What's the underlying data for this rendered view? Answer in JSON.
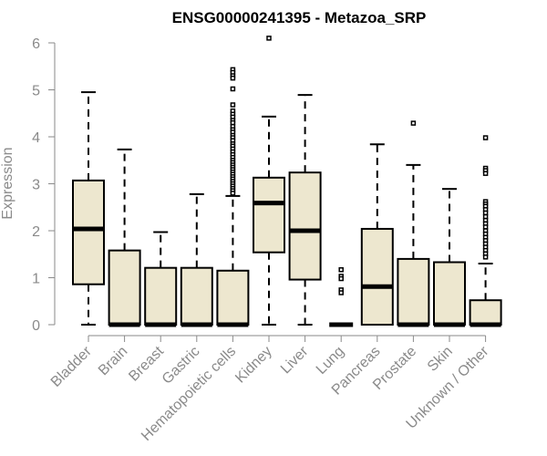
{
  "chart_data": {
    "type": "boxplot",
    "title": "ENSG00000241395 - Metazoa_SRP",
    "xlabel": "",
    "ylabel": "Expression",
    "ylim": [
      0,
      6
    ],
    "yticks": [
      "0",
      "1",
      "2",
      "3",
      "4",
      "5",
      "6"
    ],
    "grid": false,
    "colors": {
      "box_fill": "#EDE7CF",
      "stroke": "#000000",
      "axis": "#8A8A8A"
    },
    "categories": [
      "Bladder",
      "Brain",
      "Breast",
      "Gastric",
      "Hematopoietic cells",
      "Kidney",
      "Liver",
      "Lung",
      "Pancreas",
      "Prostate",
      "Skin",
      "Unknown / Other"
    ],
    "boxes": [
      {
        "name": "Bladder",
        "whisker_low": 0,
        "q1": 0.86,
        "median": 2.04,
        "q3": 3.07,
        "whisker_high": 4.95,
        "outliers": []
      },
      {
        "name": "Brain",
        "whisker_low": 0,
        "q1": 0,
        "median": 0,
        "q3": 1.58,
        "whisker_high": 3.73,
        "outliers": []
      },
      {
        "name": "Breast",
        "whisker_low": 0,
        "q1": 0,
        "median": 0,
        "q3": 1.21,
        "whisker_high": 1.97,
        "outliers": []
      },
      {
        "name": "Gastric",
        "whisker_low": 0,
        "q1": 0,
        "median": 0,
        "q3": 1.21,
        "whisker_high": 2.78,
        "outliers": []
      },
      {
        "name": "Hematopoietic cells",
        "whisker_low": 0,
        "q1": 0,
        "median": 0,
        "q3": 1.15,
        "whisker_high": 2.74,
        "outliers": [
          5.43,
          5.37,
          5.3,
          5.25,
          5.02,
          4.68,
          4.55,
          4.48,
          4.42,
          4.35,
          4.3,
          4.22,
          4.15,
          4.1,
          4.03,
          3.98,
          3.92,
          3.85,
          3.8,
          3.74,
          3.68,
          3.62,
          3.56,
          3.5,
          3.45,
          3.4,
          3.35,
          3.3,
          3.25,
          3.2,
          3.15,
          3.1,
          3.05,
          3.0,
          2.95,
          2.9,
          2.85,
          2.8
        ]
      },
      {
        "name": "Kidney",
        "whisker_low": 0,
        "q1": 1.54,
        "median": 2.59,
        "q3": 3.13,
        "whisker_high": 4.43,
        "outliers": [
          6.1
        ]
      },
      {
        "name": "Liver",
        "whisker_low": 0,
        "q1": 0.96,
        "median": 2.0,
        "q3": 3.24,
        "whisker_high": 4.89,
        "outliers": []
      },
      {
        "name": "Lung",
        "whisker_low": 0,
        "q1": 0,
        "median": 0,
        "q3": 0,
        "whisker_high": 0,
        "outliers": [
          1.17,
          1.03,
          0.98,
          0.74,
          0.68
        ]
      },
      {
        "name": "Pancreas",
        "whisker_low": 0,
        "q1": 0,
        "median": 0.81,
        "q3": 2.04,
        "whisker_high": 3.84,
        "outliers": []
      },
      {
        "name": "Prostate",
        "whisker_low": 0,
        "q1": 0,
        "median": 0,
        "q3": 1.4,
        "whisker_high": 3.4,
        "outliers": [
          4.29
        ]
      },
      {
        "name": "Skin",
        "whisker_low": 0,
        "q1": 0,
        "median": 0,
        "q3": 1.33,
        "whisker_high": 2.89,
        "outliers": []
      },
      {
        "name": "Unknown / Other",
        "whisker_low": 0,
        "q1": 0,
        "median": 0,
        "q3": 0.52,
        "whisker_high": 1.3,
        "outliers": [
          3.98,
          3.33,
          3.28,
          3.22,
          2.62,
          2.57,
          2.52,
          2.45,
          2.38,
          2.3,
          2.22,
          2.15,
          2.08,
          2.0,
          1.93,
          1.86,
          1.79,
          1.72,
          1.65,
          1.58,
          1.51,
          1.44
        ]
      }
    ]
  }
}
